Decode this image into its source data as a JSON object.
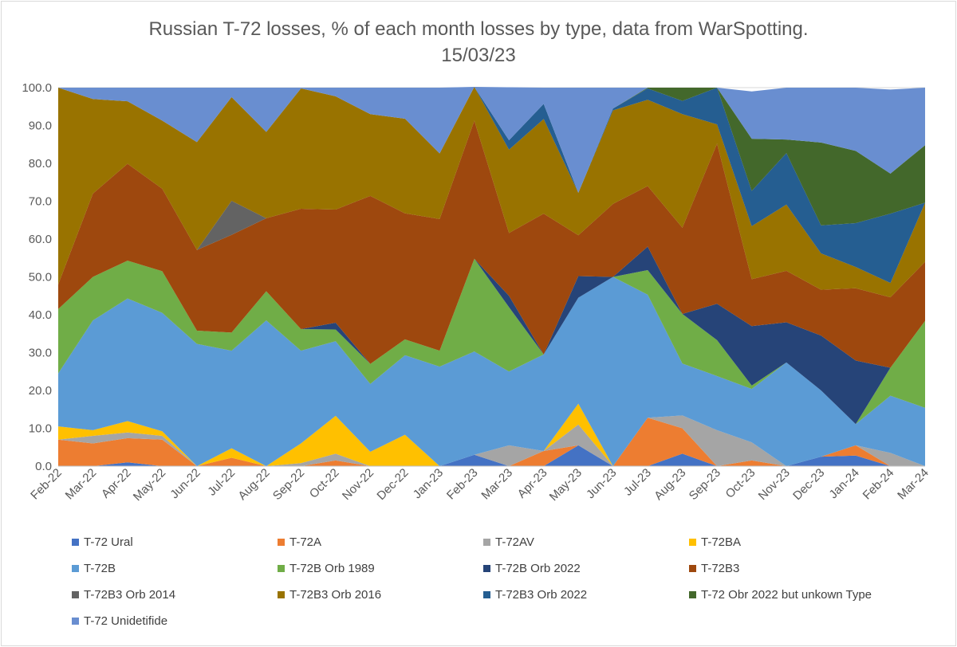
{
  "chart_data": {
    "type": "area",
    "stacked": true,
    "title": "Russian T-72 losses, % of each month losses by type, data from WarSpotting.",
    "subtitle": "15/03/23",
    "xlabel": "",
    "ylabel": "",
    "ylim": [
      0,
      100
    ],
    "y_ticks": [
      "0.0",
      "10.0",
      "20.0",
      "30.0",
      "40.0",
      "50.0",
      "60.0",
      "70.0",
      "80.0",
      "90.0",
      "100.0"
    ],
    "grid": true,
    "legend_position": "bottom",
    "categories": [
      "Feb-22",
      "Mar-22",
      "Apr-22",
      "May-22",
      "Jun-22",
      "Jul-22",
      "Aug-22",
      "Sep-22",
      "Oct-22",
      "Nov-22",
      "Dec-22",
      "Jan-23",
      "Feb-23",
      "Mar-23",
      "Apr-23",
      "May-23",
      "Jun-23",
      "Jul-23",
      "Aug-23",
      "Sep-23",
      "Oct-23",
      "Nov-23",
      "Dec-23",
      "Jan-24",
      "Feb-24",
      "Mar-24"
    ],
    "series": [
      {
        "name": "T-72 Ural",
        "color": "#4472c4",
        "values": [
          0,
          0,
          1,
          0,
          0,
          0,
          0,
          0,
          0,
          0,
          0,
          0,
          3,
          0,
          0,
          5.5,
          0,
          0,
          3.3,
          0,
          0,
          0,
          2.5,
          2.8,
          0,
          0
        ]
      },
      {
        "name": "T-72A",
        "color": "#ed7d31",
        "values": [
          7,
          6,
          6.4,
          7,
          0,
          2.2,
          0,
          0,
          1.5,
          0,
          0,
          0,
          0,
          0,
          4,
          0,
          0,
          12.8,
          6.7,
          0,
          1.5,
          0,
          0,
          2.7,
          0,
          0
        ]
      },
      {
        "name": "T-72AV",
        "color": "#a5a5a5",
        "values": [
          0,
          2,
          1.5,
          1,
          0,
          0,
          0,
          0.8,
          1.8,
          0,
          0,
          0,
          0,
          5.5,
          0,
          5.5,
          0,
          0,
          3.4,
          9.5,
          4.8,
          0,
          0,
          0,
          3.5,
          0
        ]
      },
      {
        "name": "T-72BA",
        "color": "#ffc000",
        "values": [
          3.5,
          1.5,
          3,
          1.2,
          0,
          2.5,
          0,
          5.2,
          10,
          3.8,
          8.3,
          0,
          0,
          0,
          0,
          5.5,
          0,
          0,
          0,
          0,
          0,
          0,
          0,
          0,
          0,
          0
        ]
      },
      {
        "name": "T-72B",
        "color": "#5b9bd5",
        "values": [
          14,
          29,
          32.4,
          31.3,
          32.3,
          25.8,
          38.5,
          24.5,
          19.7,
          17.9,
          21,
          26.3,
          27.3,
          19.5,
          25.5,
          28,
          50,
          32.5,
          13.7,
          14.3,
          14.1,
          27.4,
          17.5,
          5.6,
          15.1,
          15.4
        ]
      },
      {
        "name": "T-72B Orb 1989",
        "color": "#70ad47",
        "values": [
          17,
          11.5,
          10,
          11,
          3.5,
          4.8,
          7.7,
          5.7,
          3.1,
          5.3,
          4.2,
          4.2,
          24.5,
          17,
          0,
          0,
          0,
          6.5,
          13.1,
          9.5,
          0.9,
          0,
          0,
          0,
          7.4,
          23
        ]
      },
      {
        "name": "T-72B Orb 2022",
        "color": "#264478",
        "values": [
          0,
          0,
          0,
          0,
          0,
          0,
          0,
          0,
          1.8,
          0,
          0,
          0,
          0,
          3,
          0,
          5.7,
          0,
          6.2,
          0,
          9.6,
          15.7,
          10.6,
          14.5,
          16.8,
          0,
          0
        ]
      },
      {
        "name": "T-72B3",
        "color": "#9e480e",
        "values": [
          6.5,
          22,
          25.6,
          21.8,
          21.3,
          25.8,
          19.3,
          31.8,
          29.9,
          44.4,
          33.3,
          34.8,
          36.5,
          16.6,
          37.2,
          10.8,
          19.3,
          16,
          22.8,
          42.3,
          12.4,
          13.6,
          12.1,
          19.1,
          18.6,
          15.6
        ]
      },
      {
        "name": "T-72B3 Orb 2014",
        "color": "#636363",
        "values": [
          0,
          0,
          0,
          0,
          0,
          9,
          0,
          0,
          0,
          0,
          0,
          0,
          0,
          0,
          0,
          0,
          0,
          0,
          0,
          0,
          0,
          0,
          0,
          0,
          0,
          0
        ]
      },
      {
        "name": "T-72B3 Orb 2016",
        "color": "#997300",
        "values": [
          52,
          25,
          16.5,
          18,
          28.5,
          27.4,
          22.8,
          31.8,
          29.9,
          21.6,
          25,
          17.3,
          8.9,
          22,
          25,
          11.2,
          24.7,
          22.8,
          30,
          5.1,
          14,
          17.5,
          9.6,
          5.6,
          3.8,
          15.6
        ]
      },
      {
        "name": "T-72B3 Orb 2022",
        "color": "#255e91",
        "values": [
          0,
          0,
          0,
          0,
          0,
          0,
          0,
          0,
          0,
          0,
          0,
          0,
          0,
          2.5,
          4,
          0,
          0.5,
          3,
          3.5,
          9.7,
          9.3,
          13.6,
          7.4,
          11.6,
          18.3,
          0
        ]
      },
      {
        "name": "T-72 Obr 2022 but unkown Type",
        "color": "#43682b",
        "values": [
          0,
          0,
          0,
          0,
          0,
          0,
          0,
          0,
          0,
          0,
          0,
          0,
          0,
          0,
          0,
          0,
          0,
          0.2,
          3.5,
          0,
          13.8,
          3.6,
          21.9,
          19.1,
          10.6,
          15.2
        ]
      },
      {
        "name": "T-72 Unidetifide",
        "color": "#698ed0",
        "values": [
          0,
          3,
          3.6,
          8.7,
          14.4,
          2.5,
          11.7,
          0.2,
          2.3,
          7,
          8.2,
          17.4,
          0,
          14,
          4.3,
          27.8,
          5.5,
          0,
          0,
          0,
          12.5,
          13.7,
          14.5,
          16.7,
          22.2,
          15.2
        ]
      }
    ]
  }
}
